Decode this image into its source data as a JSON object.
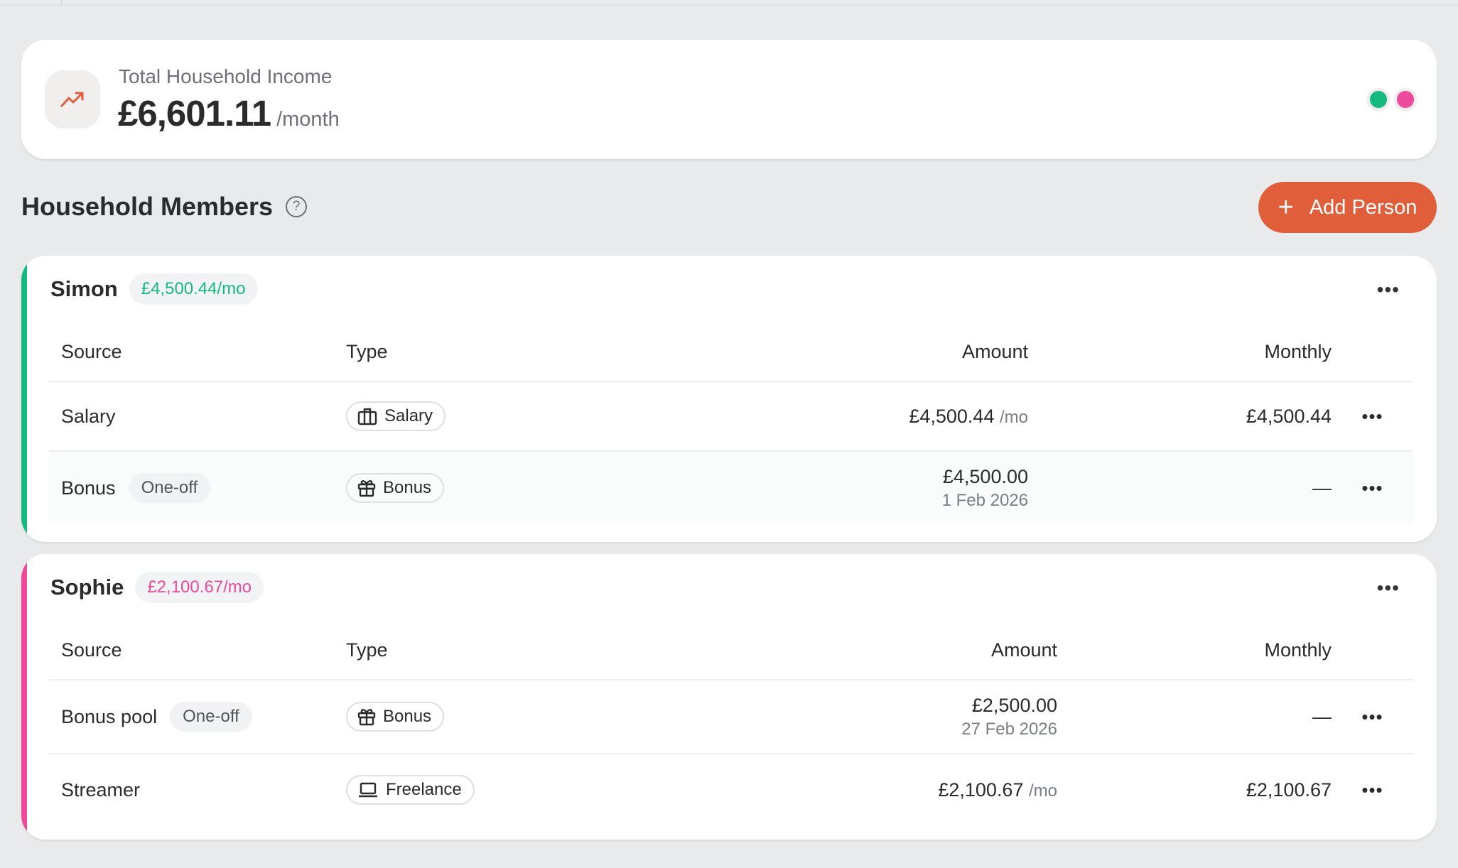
{
  "summary": {
    "label": "Total Household Income",
    "amount": "£6,601.11",
    "unit": "/month",
    "icon": "trending-up-icon",
    "member_colors": [
      "#15b97f",
      "#ec4a9a"
    ]
  },
  "section": {
    "title": "Household Members",
    "help_icon": "?",
    "add_button": "Add Person",
    "add_icon": "+"
  },
  "accent": "#e05e3a",
  "members": [
    {
      "name": "Simon",
      "monthly": "£4,500.44/mo",
      "color": "#15b97f",
      "headers": [
        "Source",
        "Type",
        "Amount",
        "Monthly"
      ],
      "rows": [
        {
          "source": "Salary",
          "tag": "",
          "type": "Salary",
          "type_icon": "briefcase-icon",
          "amount": "£4,500.44",
          "amount_unit": "/mo",
          "date": "",
          "monthly": "£4,500.44"
        },
        {
          "source": "Bonus",
          "tag": "One-off",
          "type": "Bonus",
          "type_icon": "gift-icon",
          "amount": "£4,500.00",
          "amount_unit": "",
          "date": "1 Feb 2026",
          "monthly": "—"
        }
      ]
    },
    {
      "name": "Sophie",
      "monthly": "£2,100.67/mo",
      "color": "#ec4a9a",
      "headers": [
        "Source",
        "Type",
        "Amount",
        "Monthly"
      ],
      "rows": [
        {
          "source": "Bonus pool",
          "tag": "One-off",
          "type": "Bonus",
          "type_icon": "gift-icon",
          "amount": "£2,500.00",
          "amount_unit": "",
          "date": "27 Feb 2026",
          "monthly": "—"
        },
        {
          "source": "Streamer",
          "tag": "",
          "type": "Freelance",
          "type_icon": "laptop-icon",
          "amount": "£2,100.67",
          "amount_unit": "/mo",
          "date": "",
          "monthly": "£2,100.67"
        }
      ]
    }
  ]
}
